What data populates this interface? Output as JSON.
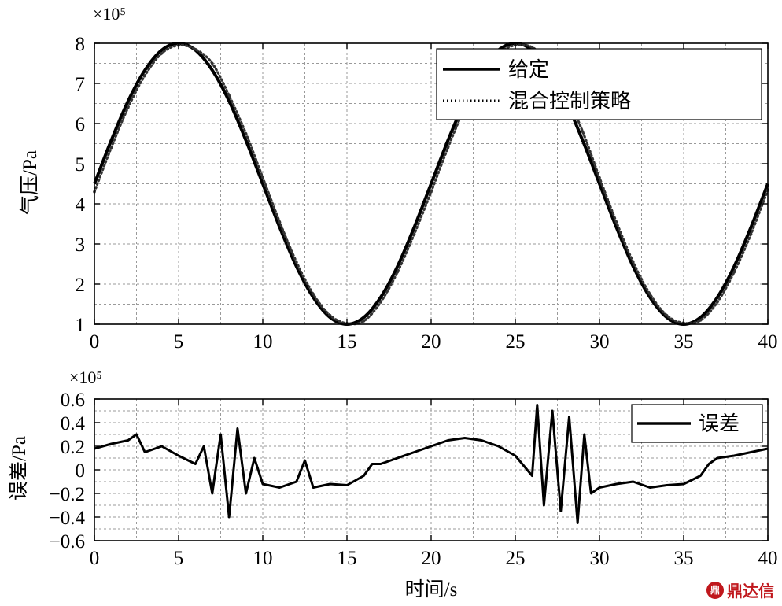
{
  "chart_data": [
    {
      "type": "line",
      "exponent_label": "×10⁵",
      "ylabel": "气压/Pa",
      "xlim": [
        0,
        40
      ],
      "ylim": [
        1,
        8
      ],
      "xticks": [
        0,
        5,
        10,
        15,
        20,
        25,
        30,
        35,
        40
      ],
      "yticks": [
        1,
        2,
        3,
        4,
        5,
        6,
        7,
        8
      ],
      "grid": true,
      "legend_position": "top-right",
      "series": [
        {
          "name": "给定",
          "style": "solid",
          "x": [
            0,
            1,
            2,
            3,
            4,
            5,
            6,
            7,
            8,
            9,
            10,
            11,
            12,
            13,
            14,
            15,
            16,
            17,
            18,
            19,
            20,
            21,
            22,
            23,
            24,
            25,
            26,
            27,
            28,
            29,
            30,
            31,
            32,
            33,
            34,
            35,
            36,
            37,
            38,
            39,
            40
          ],
          "y": [
            4.5,
            5.58,
            6.56,
            7.33,
            7.83,
            8.0,
            7.83,
            7.33,
            6.56,
            5.58,
            4.5,
            3.42,
            2.44,
            1.67,
            1.17,
            1.0,
            1.17,
            1.67,
            2.44,
            3.42,
            4.5,
            5.58,
            6.56,
            7.33,
            7.83,
            8.0,
            7.83,
            7.33,
            6.56,
            5.58,
            4.5,
            3.42,
            2.44,
            1.67,
            1.17,
            1.0,
            1.17,
            1.67,
            2.44,
            3.42,
            4.5
          ]
        },
        {
          "name": "混合控制策略",
          "style": "dotted",
          "x": [
            0,
            1,
            2,
            3,
            4,
            5,
            6,
            7,
            8,
            9,
            10,
            11,
            12,
            13,
            14,
            15,
            16,
            17,
            18,
            19,
            20,
            21,
            22,
            23,
            24,
            25,
            26,
            27,
            28,
            29,
            30,
            31,
            32,
            33,
            34,
            35,
            36,
            37,
            38,
            39,
            40
          ],
          "y": [
            4.3,
            5.4,
            6.4,
            7.2,
            7.75,
            7.95,
            7.85,
            7.5,
            6.7,
            5.75,
            4.65,
            3.55,
            2.55,
            1.75,
            1.22,
            1.02,
            1.08,
            1.55,
            2.3,
            3.25,
            4.3,
            5.4,
            6.4,
            7.2,
            7.75,
            7.95,
            7.9,
            7.5,
            6.75,
            5.8,
            4.65,
            3.55,
            2.55,
            1.75,
            1.22,
            1.03,
            1.1,
            1.55,
            2.3,
            3.25,
            4.35
          ]
        }
      ]
    },
    {
      "type": "line",
      "exponent_label": "×10⁵",
      "ylabel": "误差/Pa",
      "xlabel": "时间/s",
      "xlim": [
        0,
        40
      ],
      "ylim": [
        -0.6,
        0.6
      ],
      "xticks": [
        0,
        5,
        10,
        15,
        20,
        25,
        30,
        35,
        40
      ],
      "yticks": [
        0.6,
        0.4,
        0.2,
        0,
        -0.2,
        -0.4,
        -0.6
      ],
      "ytick_labels": [
        "0.6",
        "0.4",
        "0.2",
        "0",
        "−0.2",
        "−0.4",
        "−0.6"
      ],
      "grid": true,
      "legend_position": "top-right",
      "series": [
        {
          "name": "误差",
          "style": "solid",
          "x": [
            0,
            1,
            2,
            2.5,
            3,
            4,
            5,
            6,
            6.5,
            7,
            7.5,
            8,
            8.5,
            9,
            9.5,
            10,
            11,
            12,
            12.5,
            13,
            14,
            15,
            16,
            16.5,
            17,
            18,
            19,
            20,
            21,
            22,
            23,
            24,
            25,
            26,
            26.3,
            26.7,
            27.2,
            27.7,
            28.2,
            28.7,
            29.1,
            29.5,
            30,
            31,
            32,
            33,
            34,
            35,
            36,
            36.5,
            37,
            38,
            39,
            40
          ],
          "y": [
            0.18,
            0.22,
            0.25,
            0.3,
            0.15,
            0.2,
            0.12,
            0.05,
            0.2,
            -0.2,
            0.3,
            -0.4,
            0.35,
            -0.2,
            0.1,
            -0.12,
            -0.15,
            -0.1,
            0.08,
            -0.15,
            -0.12,
            -0.13,
            -0.05,
            0.05,
            0.05,
            0.1,
            0.15,
            0.2,
            0.25,
            0.27,
            0.25,
            0.2,
            0.12,
            -0.05,
            0.55,
            -0.3,
            0.5,
            -0.35,
            0.45,
            -0.45,
            0.3,
            -0.2,
            -0.15,
            -0.12,
            -0.1,
            -0.15,
            -0.13,
            -0.12,
            -0.05,
            0.05,
            0.1,
            0.12,
            0.15,
            0.18
          ]
        }
      ]
    }
  ],
  "watermark": {
    "logo": "鼎",
    "text": "鼎达信"
  }
}
